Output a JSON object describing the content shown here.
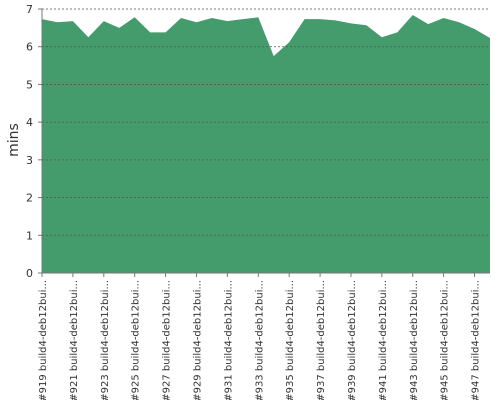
{
  "chart_data": {
    "type": "area",
    "y_label": "mins",
    "categories": [
      "#919 build4-deb12bui...",
      null,
      "#921 build4-deb12bui...",
      null,
      "#923 build4-deb12bui...",
      null,
      "#925 build4-deb12bui...",
      null,
      "#927 build4-deb12bui...",
      null,
      "#929 build4-deb12bui...",
      null,
      "#931 build4-deb12bui...",
      null,
      "#933 build4-deb12bui...",
      null,
      "#935 build4-deb12bui...",
      null,
      "#937 build4-deb12bui...",
      null,
      "#939 build4-deb12bui...",
      null,
      "#941 build4-deb12bui...",
      null,
      "#943 build4-deb12bui...",
      null,
      "#945 build4-deb12bui...",
      null,
      "#947 build4-deb12bui...",
      null
    ],
    "values": [
      6.73,
      6.65,
      6.68,
      6.25,
      6.68,
      6.5,
      6.78,
      6.38,
      6.38,
      6.76,
      6.65,
      6.76,
      6.68,
      6.73,
      6.78,
      5.75,
      6.12,
      6.73,
      6.73,
      6.7,
      6.62,
      6.57,
      6.25,
      6.38,
      6.84,
      6.6,
      6.76,
      6.65,
      6.47,
      6.23
    ],
    "color": "#449b6b",
    "ylim": [
      0,
      7
    ],
    "yticks": [
      0,
      1,
      2,
      3,
      4,
      5,
      6,
      7
    ],
    "grid": true
  }
}
